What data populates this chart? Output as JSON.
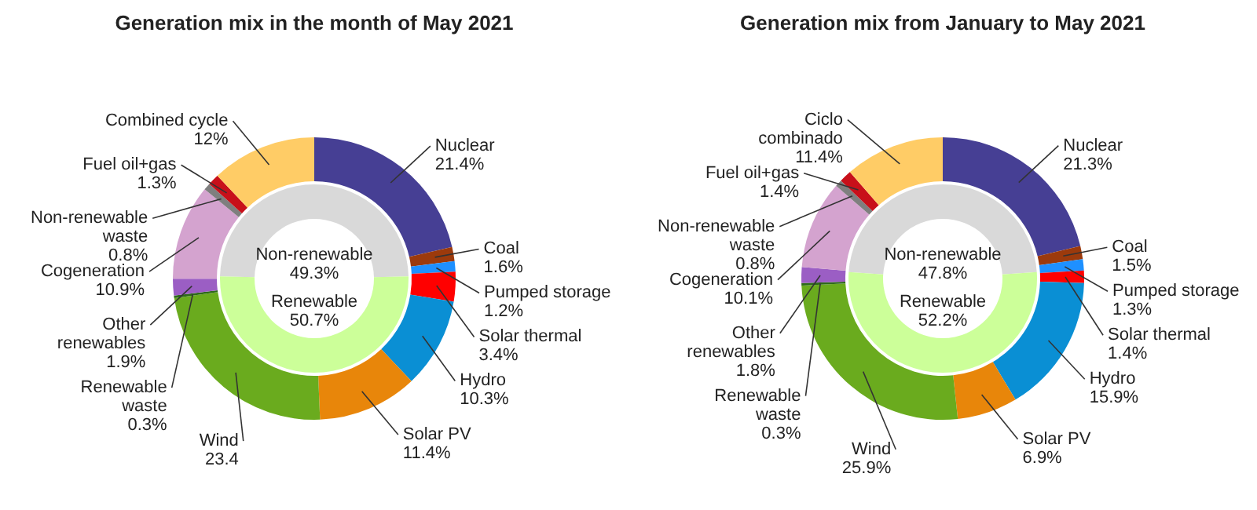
{
  "chart_data": [
    {
      "type": "donut",
      "title": "Generation mix in the month of May 2021",
      "categories": [
        "Nuclear",
        "Coal",
        "Pumped storage",
        "Solar thermal",
        "Hydro",
        "Solar PV",
        "Wind",
        "Renewable waste",
        "Other renewables",
        "Cogeneration",
        "Non-renewable waste",
        "Fuel oil+gas",
        "Combined cycle"
      ],
      "values": [
        21.4,
        1.6,
        1.2,
        3.4,
        10.3,
        11.4,
        23.4,
        0.3,
        1.9,
        10.9,
        0.8,
        1.3,
        12
      ],
      "value_labels": [
        "21.4%",
        "1.6%",
        "1.2%",
        "3.4%",
        "10.3%",
        "11.4%",
        "23.4",
        "0.3%",
        "1.9%",
        "10.9%",
        "0.8%",
        "1.3%",
        "12%"
      ],
      "colors": [
        "#463f94",
        "#9c3a0c",
        "#1e90ff",
        "#ff0000",
        "#0a8fd4",
        "#e8860a",
        "#6aab1e",
        "#2e6b1a",
        "#9b5ec4",
        "#d4a3cf",
        "#7f7f7f",
        "#c8101a",
        "#ffcc66"
      ]
    },
    {
      "type": "donut",
      "categories": [
        "Non-renewable",
        "Renewable"
      ],
      "values": [
        49.3,
        50.7
      ],
      "value_labels": [
        "49.3%",
        "50.7%"
      ],
      "colors": [
        "#d9d9d9",
        "#ccff99"
      ]
    },
    {
      "type": "donut",
      "title": "Generation mix from January to May 2021",
      "categories": [
        "Nuclear",
        "Coal",
        "Pumped storage",
        "Solar thermal",
        "Hydro",
        "Solar PV",
        "Wind",
        "Renewable waste",
        "Other renewables",
        "Cogeneration",
        "Non-renewable waste",
        "Fuel oil+gas",
        "Ciclo combinado"
      ],
      "values": [
        21.3,
        1.5,
        1.3,
        1.4,
        15.9,
        6.9,
        25.9,
        0.3,
        1.8,
        10.1,
        0.8,
        1.4,
        11.4
      ],
      "value_labels": [
        "21.3%",
        "1.5%",
        "1.3%",
        "1.4%",
        "15.9%",
        "6.9%",
        "25.9%",
        "0.3%",
        "1.8%",
        "10.1%",
        "0.8%",
        "1.4%",
        "11.4%"
      ],
      "colors": [
        "#463f94",
        "#9c3a0c",
        "#1e90ff",
        "#ff0000",
        "#0a8fd4",
        "#e8860a",
        "#6aab1e",
        "#2e6b1a",
        "#9b5ec4",
        "#d4a3cf",
        "#7f7f7f",
        "#c8101a",
        "#ffcc66"
      ]
    },
    {
      "type": "donut",
      "categories": [
        "Non-renewable",
        "Renewable"
      ],
      "values": [
        47.8,
        52.2
      ],
      "value_labels": [
        "47.8%",
        "52.2%"
      ],
      "colors": [
        "#d9d9d9",
        "#ccff99"
      ]
    }
  ]
}
